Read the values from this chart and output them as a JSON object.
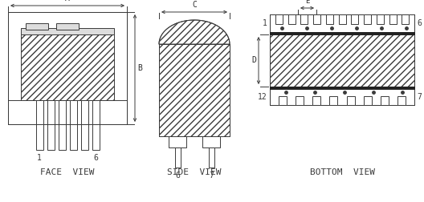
{
  "bg_color": "#ffffff",
  "line_color": "#3a3a3a",
  "label_color": "#2a2a2a",
  "face_view_label": "FACE  VIEW",
  "side_view_label": "SIDE  VIEW",
  "bottom_view_label": "BOTTOM  VIEW",
  "figsize": [
    5.28,
    2.52
  ],
  "dpi": 100
}
